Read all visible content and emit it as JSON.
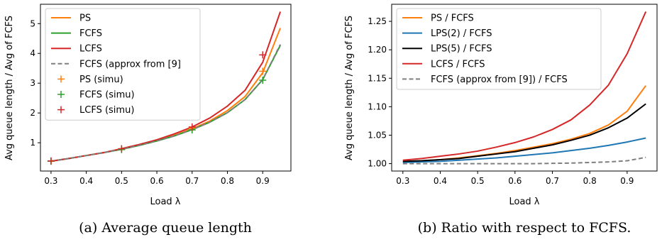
{
  "chart_data": [
    {
      "type": "line",
      "caption": "(a) Average queue length",
      "xlabel": "Load λ",
      "ylabel": "Avg queue length / Avg of FCFS",
      "xlim": [
        0.27,
        0.98
      ],
      "ylim": [
        0.05,
        5.65
      ],
      "xticks": [
        0.3,
        0.4,
        0.5,
        0.6,
        0.7,
        0.8,
        0.9
      ],
      "yticks": [
        1,
        2,
        3,
        4,
        5
      ],
      "grid": false,
      "legend_position": "top-left",
      "x": [
        0.3,
        0.35,
        0.4,
        0.45,
        0.5,
        0.55,
        0.6,
        0.65,
        0.7,
        0.75,
        0.8,
        0.85,
        0.9,
        0.95
      ],
      "series": [
        {
          "name": "PS",
          "color": "#ff7f0e",
          "style": "line",
          "values": [
            0.38,
            0.47,
            0.57,
            0.67,
            0.79,
            0.92,
            1.07,
            1.25,
            1.47,
            1.73,
            2.08,
            2.55,
            3.35,
            4.85
          ]
        },
        {
          "name": "FCFS",
          "color": "#2ca02c",
          "style": "line",
          "values": [
            0.38,
            0.47,
            0.57,
            0.67,
            0.78,
            0.91,
            1.06,
            1.23,
            1.44,
            1.69,
            2.01,
            2.45,
            3.12,
            4.27
          ]
        },
        {
          "name": "LCFS",
          "color": "#d62728",
          "style": "line",
          "values": [
            0.38,
            0.47,
            0.57,
            0.67,
            0.8,
            0.94,
            1.1,
            1.3,
            1.53,
            1.83,
            2.23,
            2.76,
            3.7,
            5.4
          ]
        },
        {
          "name": "FCFS (approx from [9]",
          "color": "#7f7f7f",
          "style": "dashed",
          "values": [
            0.38,
            0.47,
            0.57,
            0.67,
            0.78,
            0.91,
            1.06,
            1.23,
            1.44,
            1.69,
            2.01,
            2.45,
            3.12,
            4.3
          ]
        },
        {
          "name": "PS (simu)",
          "color": "#ff7f0e",
          "style": "marker",
          "x": [
            0.3,
            0.5,
            0.7,
            0.9
          ],
          "values": [
            0.38,
            0.79,
            1.49,
            3.4
          ]
        },
        {
          "name": "FCFS (simu)",
          "color": "#2ca02c",
          "style": "marker",
          "x": [
            0.3,
            0.5,
            0.7,
            0.9
          ],
          "values": [
            0.38,
            0.77,
            1.43,
            3.1
          ]
        },
        {
          "name": "LCFS (simu)",
          "color": "#d62728",
          "style": "marker",
          "x": [
            0.3,
            0.5,
            0.7,
            0.9
          ],
          "values": [
            0.39,
            0.8,
            1.53,
            3.95
          ]
        }
      ]
    },
    {
      "type": "line",
      "caption": "(b) Ratio with respect to FCFS.",
      "xlabel": "Load λ",
      "ylabel": "Avg queue length / Avg of FCFS",
      "xlim": [
        0.27,
        0.98
      ],
      "ylim": [
        0.987,
        1.28
      ],
      "xticks": [
        0.3,
        0.4,
        0.5,
        0.6,
        0.7,
        0.8,
        0.9
      ],
      "yticks": [
        1.0,
        1.05,
        1.1,
        1.15,
        1.2,
        1.25
      ],
      "ytick_labels": [
        "1.00",
        "1.05",
        "1.10",
        "1.15",
        "1.20",
        "1.25"
      ],
      "grid": false,
      "legend_position": "top-left",
      "x": [
        0.3,
        0.35,
        0.4,
        0.45,
        0.5,
        0.55,
        0.6,
        0.65,
        0.7,
        0.75,
        0.8,
        0.85,
        0.9,
        0.95
      ],
      "series": [
        {
          "name": "PS / FCFS",
          "color": "#ff7f0e",
          "style": "line",
          "values": [
            1.004,
            1.005,
            1.007,
            1.01,
            1.014,
            1.018,
            1.023,
            1.029,
            1.035,
            1.043,
            1.053,
            1.068,
            1.092,
            1.137
          ]
        },
        {
          "name": "LPS(2) / FCFS",
          "color": "#1f77b4",
          "style": "line",
          "values": [
            1.002,
            1.003,
            1.004,
            1.006,
            1.008,
            1.01,
            1.013,
            1.016,
            1.019,
            1.023,
            1.027,
            1.032,
            1.038,
            1.045
          ]
        },
        {
          "name": "LPS(5) / FCFS",
          "color": "#000000",
          "style": "line",
          "values": [
            1.004,
            1.005,
            1.007,
            1.009,
            1.013,
            1.017,
            1.021,
            1.027,
            1.033,
            1.041,
            1.05,
            1.063,
            1.08,
            1.105
          ]
        },
        {
          "name": "LCFS / FCFS",
          "color": "#d62728",
          "style": "line",
          "values": [
            1.006,
            1.009,
            1.013,
            1.017,
            1.022,
            1.029,
            1.037,
            1.047,
            1.06,
            1.077,
            1.103,
            1.138,
            1.193,
            1.267
          ]
        },
        {
          "name": "FCFS (approx from [9]) / FCFS",
          "color": "#7f7f7f",
          "style": "dashed",
          "values": [
            1.0,
            1.0,
            1.0,
            1.0,
            1.0,
            1.0,
            1.0,
            1.0,
            1.0005,
            1.001,
            1.002,
            1.003,
            1.005,
            1.011
          ]
        }
      ]
    }
  ]
}
